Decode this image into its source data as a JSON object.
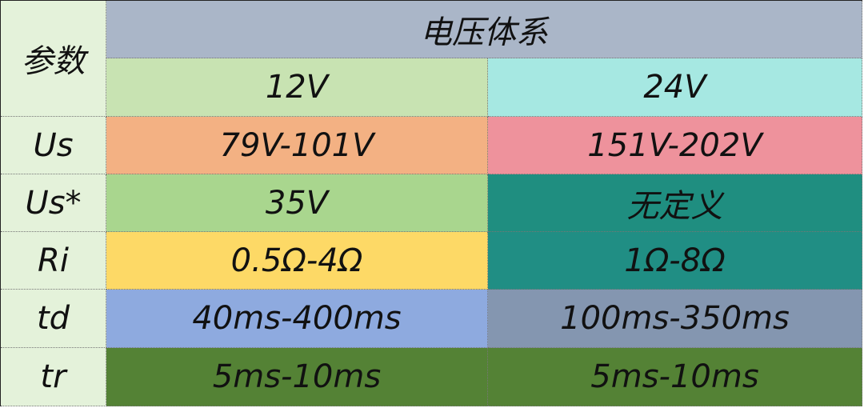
{
  "header": {
    "param_label": "参数",
    "system_label": "电压体系",
    "col_12v": "12V",
    "col_24v": "24V"
  },
  "rows": [
    {
      "param": "Us",
      "v12": "79V-101V",
      "v24": "151V-202V",
      "color12": "#f3b183",
      "color24": "#ee929c"
    },
    {
      "param": "Us*",
      "v12": "35V",
      "v24": "无定义",
      "color12": "#a9d68e",
      "color24": "#1f8e80"
    },
    {
      "param": "Ri",
      "v12": "0.5Ω-4Ω",
      "v24": "1Ω-8Ω",
      "color12": "#fdd966",
      "color24": "#208e84"
    },
    {
      "param": "td",
      "v12": "40ms-400ms",
      "v24": "100ms-350ms",
      "color12": "#8eaadf",
      "color24": "#8496b0"
    },
    {
      "param": "tr",
      "v12": "5ms-10ms",
      "v24": "5ms-10ms",
      "color12": "#548235",
      "color24": "#548235"
    }
  ],
  "colors": {
    "system_header": "#aab6c8",
    "header_12v": "#c8e3b2",
    "header_24v": "#a6e8e2",
    "param_column": "#e4f2da"
  }
}
